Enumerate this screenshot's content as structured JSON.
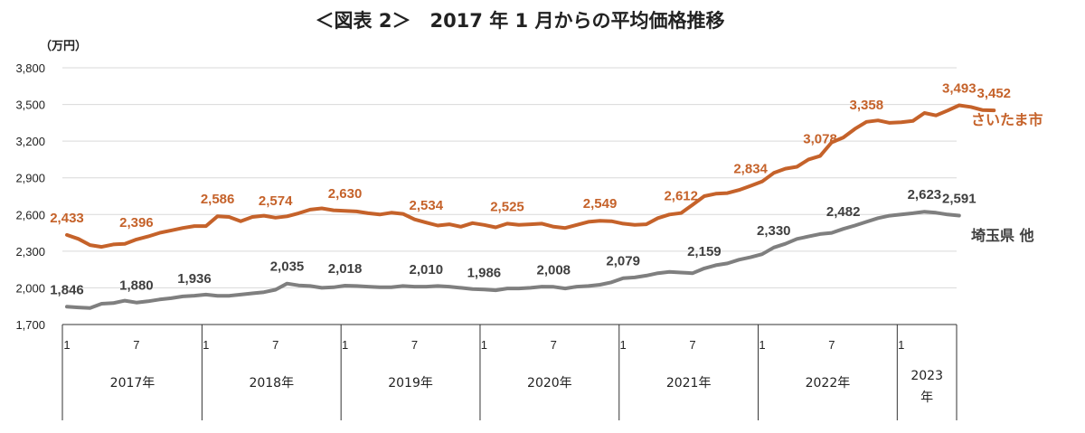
{
  "colors": {
    "saitama_city": "#C5622A",
    "saitama_other": "#7F7F7F",
    "grid": "#D9D9D9",
    "axis": "#333333"
  },
  "chart_data": {
    "type": "line",
    "title": "＜図表 2＞　2017 年 1 月からの平均価格推移",
    "ylabel": "（万円）",
    "ylim": [
      1700,
      3800
    ],
    "yticks": [
      "1,700",
      "2,000",
      "2,300",
      "2,600",
      "2,900",
      "3,200",
      "3,500",
      "3,800"
    ],
    "ytick_values": [
      1700,
      2000,
      2300,
      2600,
      2900,
      3200,
      3500,
      3800
    ],
    "grid": true,
    "x_month_ticks": [
      "1",
      "7",
      "1",
      "7",
      "1",
      "7",
      "1",
      "7",
      "1",
      "7",
      "1",
      "7",
      "1"
    ],
    "x_month_index": [
      0,
      6,
      12,
      18,
      24,
      30,
      36,
      42,
      48,
      54,
      60,
      66,
      72
    ],
    "years": [
      {
        "label": "2017年",
        "start": 0,
        "end": 12
      },
      {
        "label": "2018年",
        "start": 12,
        "end": 24
      },
      {
        "label": "2019年",
        "start": 24,
        "end": 36
      },
      {
        "label": "2020年",
        "start": 36,
        "end": 48
      },
      {
        "label": "2021年",
        "start": 48,
        "end": 60
      },
      {
        "label": "2022年",
        "start": 60,
        "end": 72
      },
      {
        "label": "2023年",
        "start": 72,
        "end": 76
      }
    ],
    "year_2023_lines": [
      "2023",
      "年"
    ],
    "x_start": "2017-01",
    "series": [
      {
        "name": "さいたま市",
        "color": "#C5622A",
        "values": [
          2433,
          2400,
          2350,
          2335,
          2355,
          2360,
          2396,
          2420,
          2450,
          2470,
          2490,
          2505,
          2505,
          2586,
          2580,
          2545,
          2580,
          2590,
          2574,
          2585,
          2610,
          2640,
          2650,
          2635,
          2630,
          2625,
          2610,
          2600,
          2615,
          2605,
          2560,
          2534,
          2510,
          2520,
          2500,
          2530,
          2515,
          2495,
          2525,
          2515,
          2520,
          2525,
          2500,
          2490,
          2515,
          2540,
          2549,
          2545,
          2525,
          2515,
          2520,
          2570,
          2600,
          2612,
          2680,
          2750,
          2770,
          2775,
          2800,
          2834,
          2870,
          2940,
          2975,
          2990,
          3050,
          3078,
          3190,
          3230,
          3300,
          3358,
          3370,
          3350,
          3355,
          3365,
          3430,
          3410,
          3450,
          3493,
          3480,
          3455,
          3452
        ],
        "labels": [
          {
            "i": 0,
            "text": "2,433"
          },
          {
            "i": 6,
            "text": "2,396"
          },
          {
            "i": 13,
            "text": "2,586"
          },
          {
            "i": 18,
            "text": "2,574"
          },
          {
            "i": 24,
            "text": "2,630"
          },
          {
            "i": 31,
            "text": "2,534"
          },
          {
            "i": 38,
            "text": "2,525"
          },
          {
            "i": 46,
            "text": "2,549"
          },
          {
            "i": 53,
            "text": "2,612"
          },
          {
            "i": 59,
            "text": "2,834"
          },
          {
            "i": 65,
            "text": "3,078"
          },
          {
            "i": 69,
            "text": "3,358"
          },
          {
            "i": 77,
            "text": "3,493"
          },
          {
            "i": 80,
            "text": "3,452"
          }
        ]
      },
      {
        "name": "埼玉県 他",
        "color": "#7F7F7F",
        "values": [
          1846,
          1840,
          1835,
          1870,
          1875,
          1895,
          1880,
          1890,
          1905,
          1915,
          1930,
          1936,
          1945,
          1935,
          1935,
          1945,
          1955,
          1965,
          1985,
          2035,
          2020,
          2015,
          2000,
          2005,
          2018,
          2015,
          2010,
          2005,
          2005,
          2015,
          2010,
          2010,
          2015,
          2010,
          2000,
          1990,
          1986,
          1980,
          1995,
          1995,
          2000,
          2010,
          2008,
          1995,
          2010,
          2015,
          2025,
          2045,
          2079,
          2085,
          2100,
          2120,
          2130,
          2125,
          2120,
          2159,
          2185,
          2200,
          2230,
          2250,
          2275,
          2330,
          2360,
          2400,
          2420,
          2440,
          2450,
          2482,
          2510,
          2540,
          2570,
          2590,
          2600,
          2610,
          2623,
          2615,
          2600,
          2591
        ],
        "labels": [
          {
            "i": 0,
            "text": "1,846"
          },
          {
            "i": 6,
            "text": "1,880"
          },
          {
            "i": 11,
            "text": "1,936"
          },
          {
            "i": 19,
            "text": "2,035"
          },
          {
            "i": 24,
            "text": "2,018"
          },
          {
            "i": 31,
            "text": "2,010"
          },
          {
            "i": 36,
            "text": "1,986"
          },
          {
            "i": 42,
            "text": "2,008"
          },
          {
            "i": 48,
            "text": "2,079"
          },
          {
            "i": 55,
            "text": "2,159"
          },
          {
            "i": 61,
            "text": "2,330"
          },
          {
            "i": 67,
            "text": "2,482"
          },
          {
            "i": 74,
            "text": "2,623"
          },
          {
            "i": 77,
            "text": "2,591"
          }
        ]
      }
    ]
  }
}
